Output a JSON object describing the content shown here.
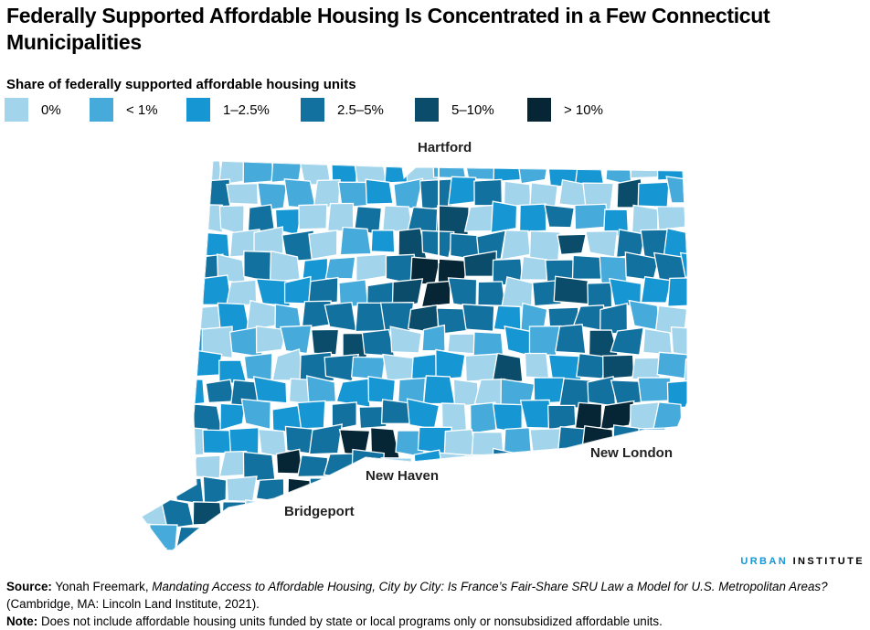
{
  "title": "Federally Supported Affordable Housing Is Concentrated in a Few Connecticut Municipalities",
  "legend": {
    "title": "Share of federally supported affordable housing units",
    "items": [
      {
        "label": "0%",
        "color": "#a2d4ec"
      },
      {
        "label": "< 1%",
        "color": "#46abdb"
      },
      {
        "label": "1–2.5%",
        "color": "#1696d2"
      },
      {
        "label": "2.5–5%",
        "color": "#12719e"
      },
      {
        "label": "5–10%",
        "color": "#0a4c6a"
      },
      {
        "label": "> 10%",
        "color": "#062635"
      }
    ]
  },
  "cities": {
    "hartford": "Hartford",
    "new_haven": "New Haven",
    "bridgeport": "Bridgeport",
    "new_london": "New London"
  },
  "logo": {
    "part1": "URBAN",
    "part2": "INSTITUTE"
  },
  "notes": {
    "source_label": "Source:",
    "source_text_1": "Yonah Freemark, ",
    "source_title": "Mandating Access to Affordable Housing, City by City: Is France’s Fair-Share SRU Law a Model for U.S. Metropolitan Areas?",
    "source_text_2": " (Cambridge, MA: Lincoln Land Institute, 2021).",
    "note_label": "Note:",
    "note_text": " Does not include affordable housing units funded by state or local programs only or nonsubsidized affordable units."
  }
}
